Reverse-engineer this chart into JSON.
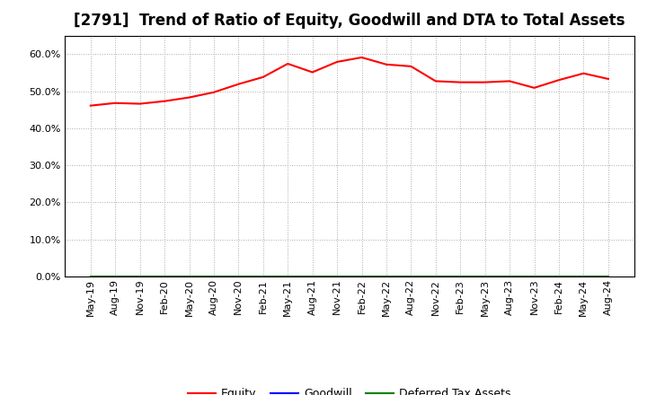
{
  "title": "[2791]  Trend of Ratio of Equity, Goodwill and DTA to Total Assets",
  "x_labels": [
    "May-19",
    "Aug-19",
    "Nov-19",
    "Feb-20",
    "May-20",
    "Aug-20",
    "Nov-20",
    "Feb-21",
    "May-21",
    "Aug-21",
    "Nov-21",
    "Feb-22",
    "May-22",
    "Aug-22",
    "Nov-22",
    "Feb-23",
    "May-23",
    "Aug-23",
    "Nov-23",
    "Feb-24",
    "May-24",
    "Aug-24"
  ],
  "equity": [
    0.461,
    0.468,
    0.466,
    0.473,
    0.483,
    0.497,
    0.519,
    0.538,
    0.574,
    0.551,
    0.579,
    0.591,
    0.572,
    0.567,
    0.527,
    0.524,
    0.524,
    0.527,
    0.509,
    0.53,
    0.548,
    0.533
  ],
  "goodwill": [
    0.0,
    0.0,
    0.0,
    0.0,
    0.0,
    0.0,
    0.0,
    0.0,
    0.0,
    0.0,
    0.0,
    0.0,
    0.0,
    0.0,
    0.0,
    0.0,
    0.0,
    0.0,
    0.0,
    0.0,
    0.0,
    0.0
  ],
  "dta": [
    0.0,
    0.0,
    0.0,
    0.0,
    0.0,
    0.0,
    0.0,
    0.0,
    0.0,
    0.0,
    0.0,
    0.0,
    0.0,
    0.0,
    0.0,
    0.0,
    0.0,
    0.0,
    0.0,
    0.0,
    0.0,
    0.0
  ],
  "equity_color": "#FF0000",
  "goodwill_color": "#0000FF",
  "dta_color": "#008000",
  "ylim": [
    0.0,
    0.65
  ],
  "yticks": [
    0.0,
    0.1,
    0.2,
    0.3,
    0.4,
    0.5,
    0.6
  ],
  "background_color": "#FFFFFF",
  "grid_color": "#AAAAAA",
  "title_fontsize": 12,
  "tick_fontsize": 8,
  "legend_labels": [
    "Equity",
    "Goodwill",
    "Deferred Tax Assets"
  ]
}
